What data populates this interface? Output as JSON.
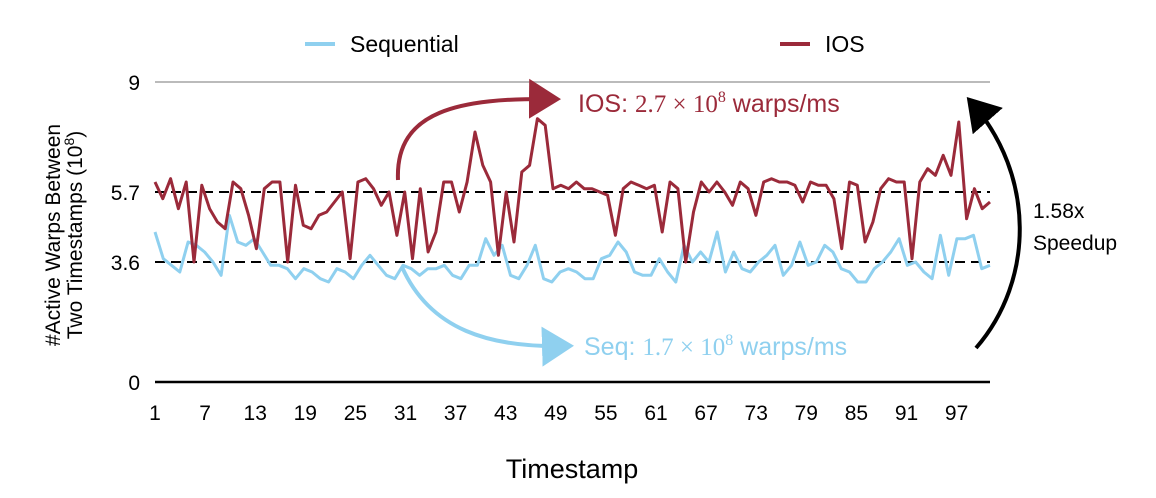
{
  "chart_data": {
    "type": "line",
    "xlabel": "Timestamp",
    "ylabel_line1": "#Active Warps Between",
    "ylabel_line2": "Two Timestamps (10",
    "ylabel_exp": "8",
    "ylabel_close": ")",
    "xlim": [
      1,
      101
    ],
    "ylim": [
      0,
      9
    ],
    "yticks": [
      "0",
      "3.6",
      "5.7",
      "9"
    ],
    "xticks": [
      "1",
      "7",
      "13",
      "19",
      "25",
      "31",
      "37",
      "43",
      "49",
      "55",
      "61",
      "67",
      "73",
      "79",
      "85",
      "91",
      "97"
    ],
    "legend_position": "top",
    "reference_lines": [
      5.7,
      3.6
    ],
    "series": [
      {
        "name": "Sequential",
        "color": "#8fd0ef",
        "values": [
          4.5,
          3.7,
          3.5,
          3.3,
          4.2,
          4.1,
          3.9,
          3.6,
          3.2,
          5.0,
          4.2,
          4.1,
          4.3,
          3.9,
          3.5,
          3.5,
          3.4,
          3.1,
          3.4,
          3.3,
          3.1,
          3.0,
          3.4,
          3.3,
          3.1,
          3.5,
          3.8,
          3.5,
          3.2,
          3.1,
          3.5,
          3.4,
          3.2,
          3.4,
          3.4,
          3.5,
          3.2,
          3.1,
          3.5,
          3.5,
          4.3,
          3.8,
          4.1,
          3.2,
          3.1,
          3.5,
          4.1,
          3.1,
          3.0,
          3.3,
          3.4,
          3.3,
          3.1,
          3.1,
          3.7,
          3.8,
          4.2,
          3.9,
          3.3,
          3.2,
          3.2,
          3.7,
          3.3,
          3.0,
          4.1,
          3.6,
          3.9,
          3.6,
          4.5,
          3.3,
          3.9,
          3.4,
          3.3,
          3.6,
          3.8,
          4.1,
          3.2,
          3.5,
          4.2,
          3.5,
          3.6,
          4.1,
          3.9,
          3.4,
          3.3,
          3.0,
          3.0,
          3.4,
          3.6,
          3.9,
          4.3,
          3.5,
          3.6,
          3.3,
          3.1,
          4.4,
          3.2,
          4.3,
          4.3,
          4.4,
          3.4,
          3.5
        ]
      },
      {
        "name": "IOS",
        "color": "#9b2a3a",
        "values": [
          6.0,
          5.5,
          6.1,
          5.2,
          6.0,
          3.6,
          5.9,
          5.2,
          4.8,
          4.6,
          6.0,
          5.8,
          5.0,
          4.0,
          5.8,
          6.0,
          6.0,
          3.6,
          5.9,
          4.7,
          4.6,
          5.0,
          5.1,
          5.4,
          5.7,
          3.7,
          6.0,
          6.1,
          5.8,
          5.3,
          5.7,
          4.4,
          5.7,
          3.7,
          5.8,
          3.9,
          4.5,
          6.0,
          6.0,
          5.1,
          6.0,
          7.5,
          6.5,
          6.0,
          3.8,
          5.7,
          4.2,
          6.3,
          6.5,
          7.9,
          7.7,
          5.8,
          5.9,
          5.8,
          6.0,
          5.8,
          5.8,
          5.7,
          5.6,
          4.4,
          5.8,
          6.0,
          5.9,
          5.8,
          5.9,
          4.5,
          6.0,
          5.8,
          3.6,
          5.1,
          6.0,
          5.7,
          6.0,
          5.7,
          5.3,
          6.0,
          5.8,
          5.0,
          6.0,
          6.1,
          6.0,
          6.0,
          5.9,
          5.4,
          6.0,
          5.9,
          5.9,
          5.5,
          4.0,
          6.0,
          5.9,
          4.2,
          4.8,
          5.8,
          6.1,
          6.0,
          6.0,
          3.7,
          6.0,
          6.4,
          6.2,
          6.8,
          6.2,
          7.8,
          4.9,
          5.8,
          5.2,
          5.4
        ]
      }
    ],
    "annotations": {
      "ios_prefix": "IOS: ",
      "ios_rate": "2.7 × 10",
      "ios_exp": "8",
      "ios_suffix": " warps/ms",
      "seq_prefix": "Seq: ",
      "seq_rate": "1.7 × 10",
      "seq_exp": "8",
      "seq_suffix": " warps/ms",
      "speedup_line1": "1.58x",
      "speedup_line2": "Speedup"
    }
  }
}
